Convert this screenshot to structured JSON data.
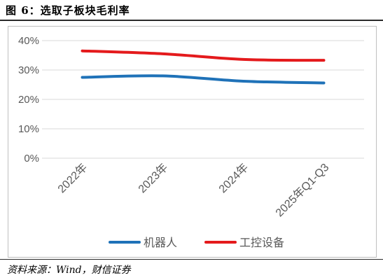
{
  "figure": {
    "title": "图 6：选取子板块毛利率",
    "source": "资料来源：Wind，财信证券"
  },
  "chart_data": {
    "type": "line",
    "categories": [
      "2022年",
      "2023年",
      "2024年",
      "2025年Q1-Q3"
    ],
    "y_ticks": [
      "0%",
      "10%",
      "20%",
      "30%",
      "40%"
    ],
    "ylim": [
      0,
      40
    ],
    "grid": true,
    "legend_position": "bottom",
    "series": [
      {
        "name": "机器人",
        "values": [
          27.5,
          28.0,
          26.2,
          25.6
        ],
        "color": "#1f72b8"
      },
      {
        "name": "工控设备",
        "values": [
          36.5,
          35.5,
          33.6,
          33.3
        ],
        "color": "#e41a1c"
      }
    ]
  }
}
